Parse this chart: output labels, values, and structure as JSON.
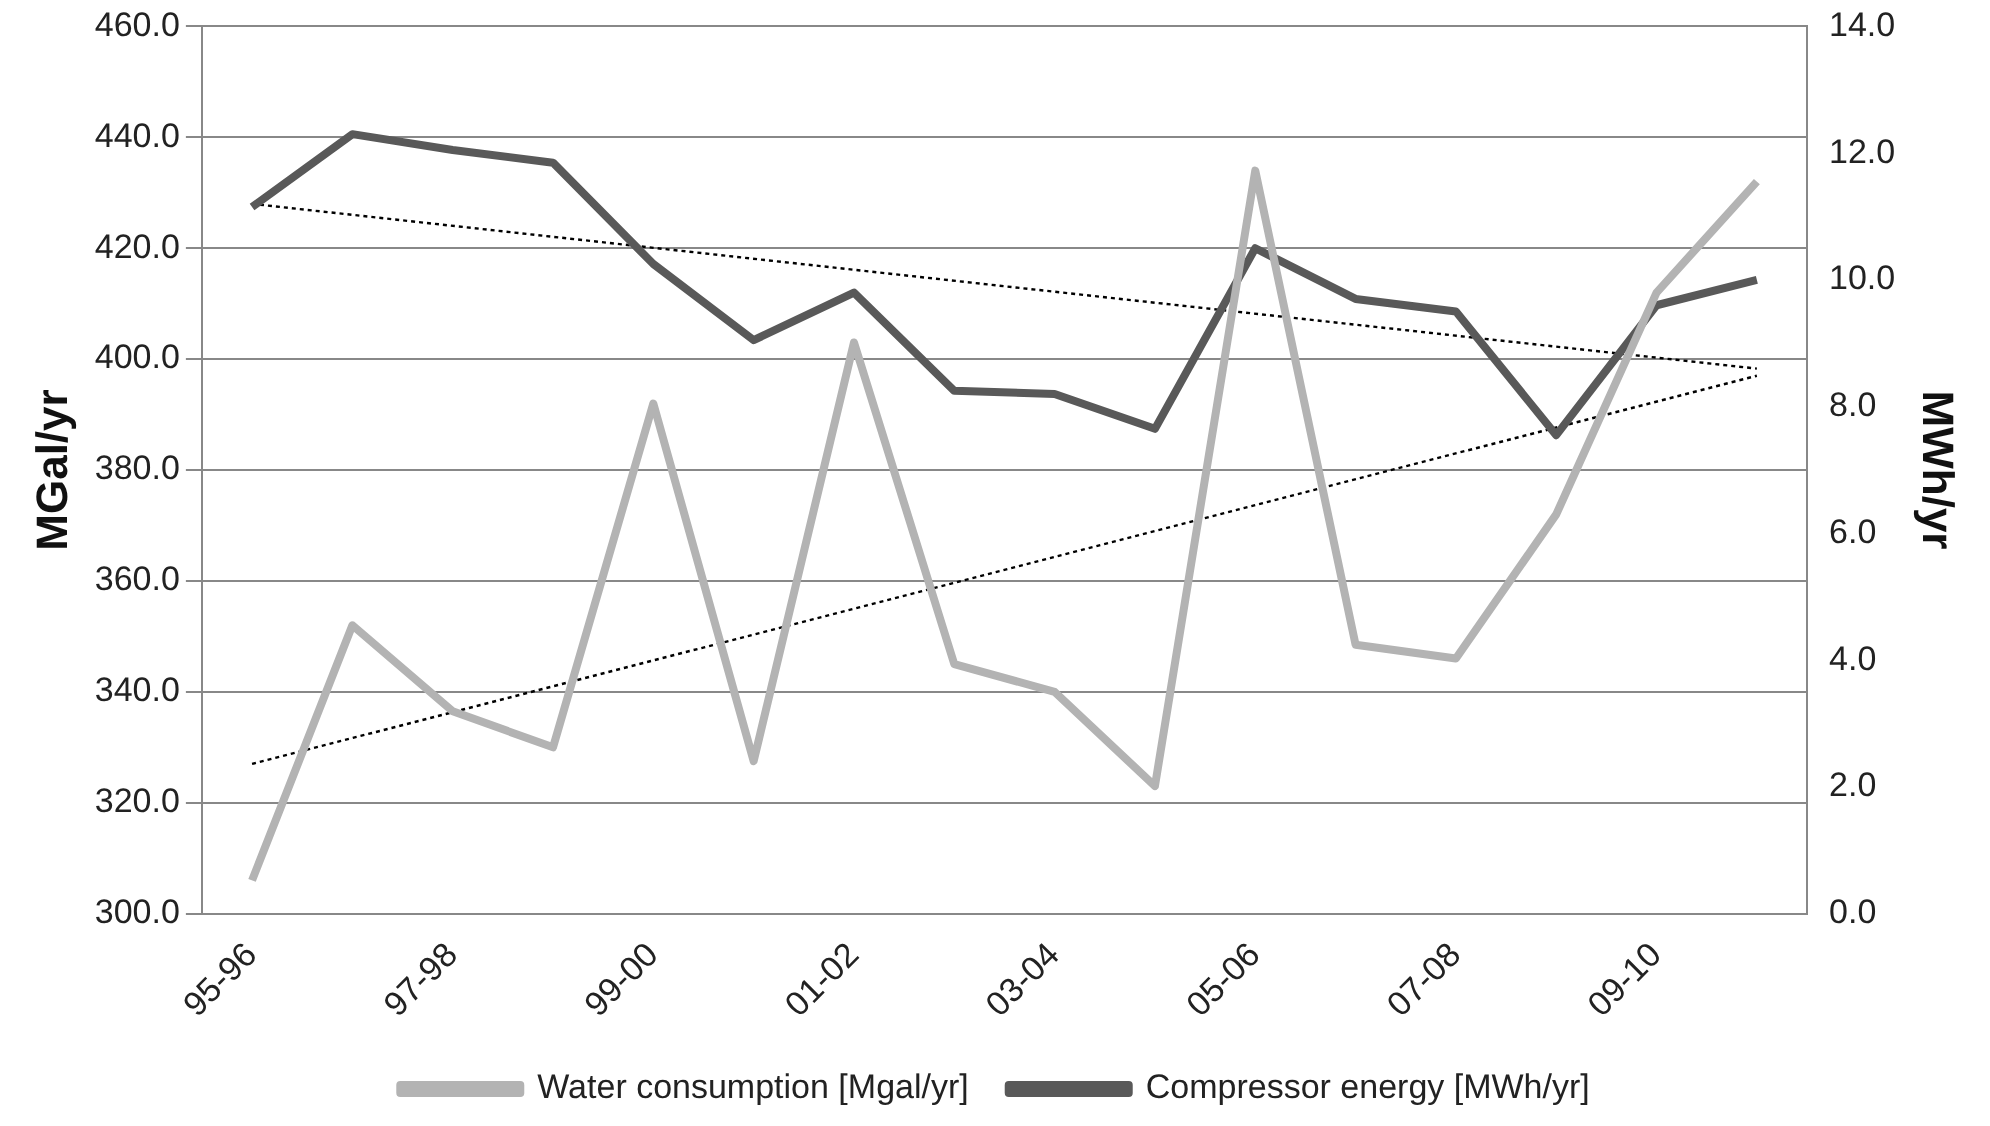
{
  "chart_data": {
    "type": "line",
    "ylabel": "MGal/yr",
    "y2label": "MWh/yr",
    "categories": [
      "95-96",
      null,
      "97-98",
      null,
      "99-00",
      null,
      "01-02",
      null,
      "03-04",
      null,
      "05-06",
      null,
      "07-08",
      null,
      "09-10",
      null
    ],
    "series": [
      {
        "name": "Water consumption [Mgal/yr]",
        "color": "#b3b3b3",
        "values": [
          306,
          352,
          336.5,
          330,
          392,
          327.5,
          403,
          345,
          340,
          323,
          434,
          348.5,
          346,
          372,
          412,
          432
        ]
      },
      {
        "name": "Compressor energy [MWh/yr]",
        "color": "#595959",
        "axis": "y2",
        "values": [
          11.15,
          12.3,
          12.05,
          11.85,
          10.25,
          9.05,
          9.8,
          8.25,
          8.2,
          7.65,
          10.5,
          9.7,
          9.5,
          7.55,
          9.6,
          10.0
        ]
      },
      {
        "color": "#000000",
        "line_style": "dotted",
        "values": [
          327,
          null,
          null,
          null,
          null,
          null,
          null,
          null,
          null,
          null,
          null,
          null,
          null,
          null,
          null,
          397
        ]
      },
      {
        "color": "#000000",
        "line_style": "dotted",
        "axis": "y2",
        "values": [
          11.2,
          null,
          null,
          null,
          null,
          null,
          null,
          null,
          null,
          null,
          null,
          null,
          null,
          null,
          null,
          8.6
        ]
      }
    ],
    "ylim": [
      300,
      460
    ],
    "yticks": [
      {
        "value": 300,
        "label": "300.0"
      },
      {
        "value": 320,
        "label": "320.0"
      },
      {
        "value": 340,
        "label": "340.0"
      },
      {
        "value": 360,
        "label": "360.0"
      },
      {
        "value": 380,
        "label": "380.0"
      },
      {
        "value": 400,
        "label": "400.0"
      },
      {
        "value": 420,
        "label": "420.0"
      },
      {
        "value": 440,
        "label": "440.0"
      },
      {
        "value": 460,
        "label": "460.0"
      }
    ],
    "y2lim": [
      0,
      14
    ],
    "y2ticks": [
      {
        "value": 0,
        "label": "0.0"
      },
      {
        "value": 2,
        "label": "2.0"
      },
      {
        "value": 4,
        "label": "4.0"
      },
      {
        "value": 6,
        "label": "6.0"
      },
      {
        "value": 8,
        "label": "8.0"
      },
      {
        "value": 10,
        "label": "10.0"
      },
      {
        "value": 12,
        "label": "12.0"
      },
      {
        "value": 14,
        "label": "14.0"
      }
    ],
    "grid": "y",
    "legend": "bottom",
    "marker": "none"
  }
}
